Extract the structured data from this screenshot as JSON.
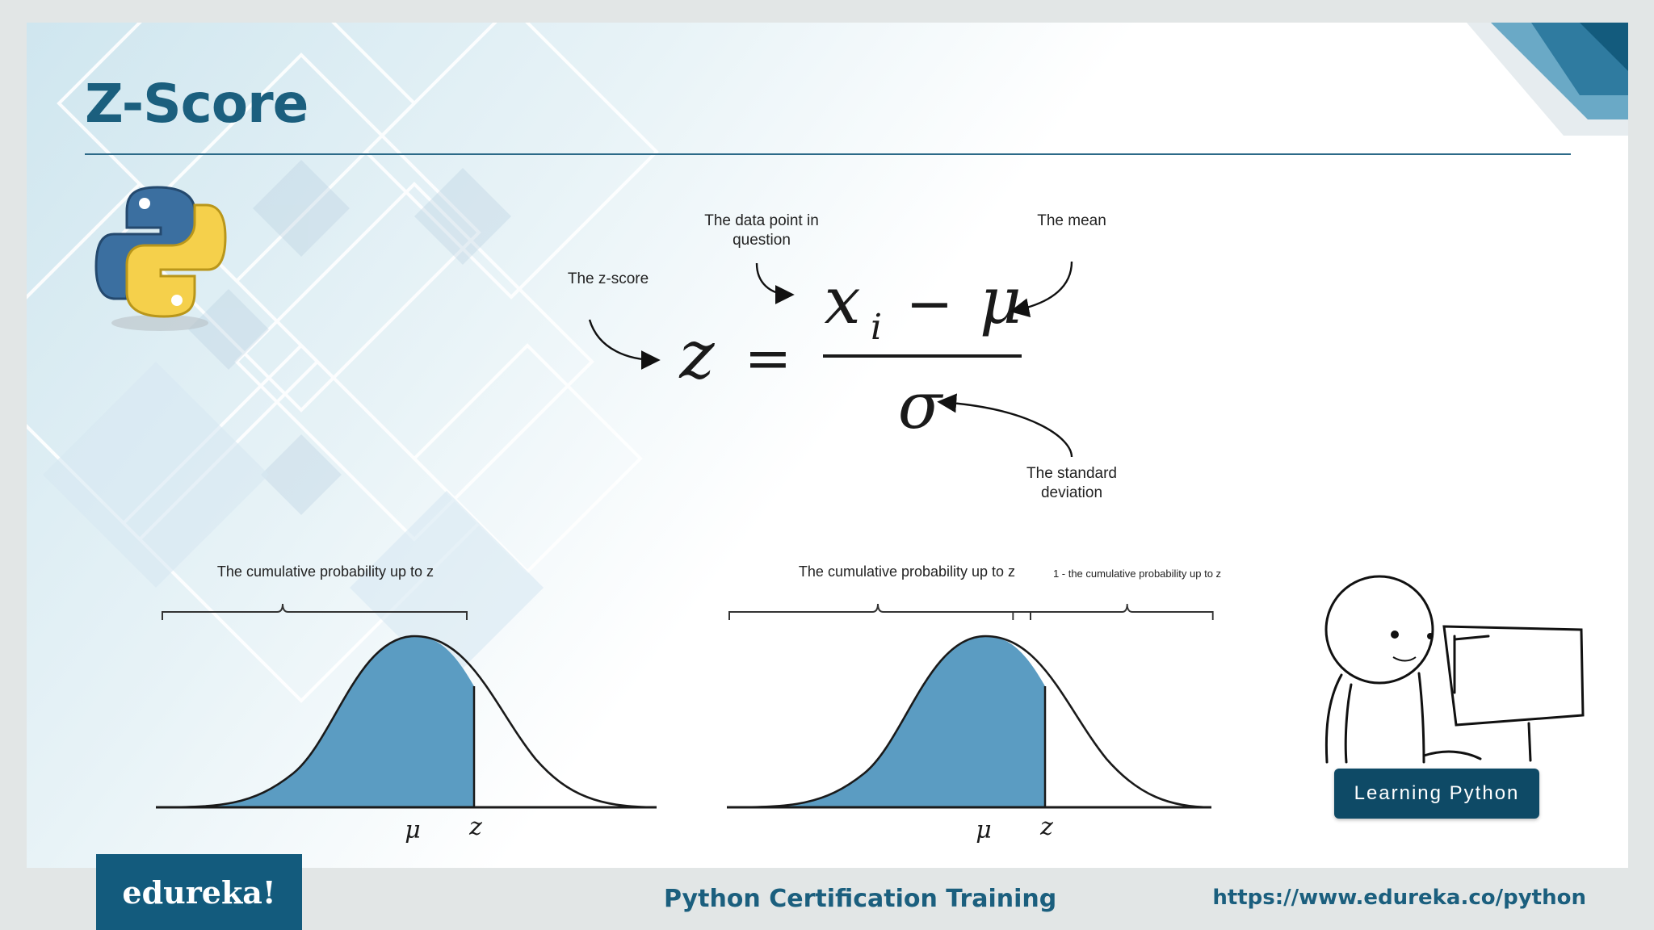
{
  "slide": {
    "title": "Z-Score",
    "formula": {
      "lhs": "z",
      "equals": "=",
      "numerator_left": "x",
      "numerator_sub": "i",
      "minus": "−",
      "numerator_right": "μ",
      "denominator": "σ",
      "annotations": {
        "z_score": "The z-score",
        "data_point_line1": "The data point in",
        "data_point_line2": "question",
        "mean": "The mean",
        "std_line1": "The standard",
        "std_line2": "deviation"
      }
    },
    "distributions": [
      {
        "brace_label": "The cumulative probability up to z",
        "mu_label": "μ",
        "z_label": "z"
      },
      {
        "brace_label_left": "The cumulative probability up to z",
        "brace_label_right": "1 - the cumulative probability up to z",
        "mu_label": "μ",
        "z_label": "z"
      }
    ],
    "learning_button": "Learning Python",
    "colors": {
      "accent": "#1b5f7e",
      "curve_fill": "#5b9cc2",
      "button": "#0e4a66"
    }
  },
  "footer": {
    "logo_text": "edureka!",
    "course": "Python Certification Training",
    "url": "https://www.edureka.co/python"
  }
}
